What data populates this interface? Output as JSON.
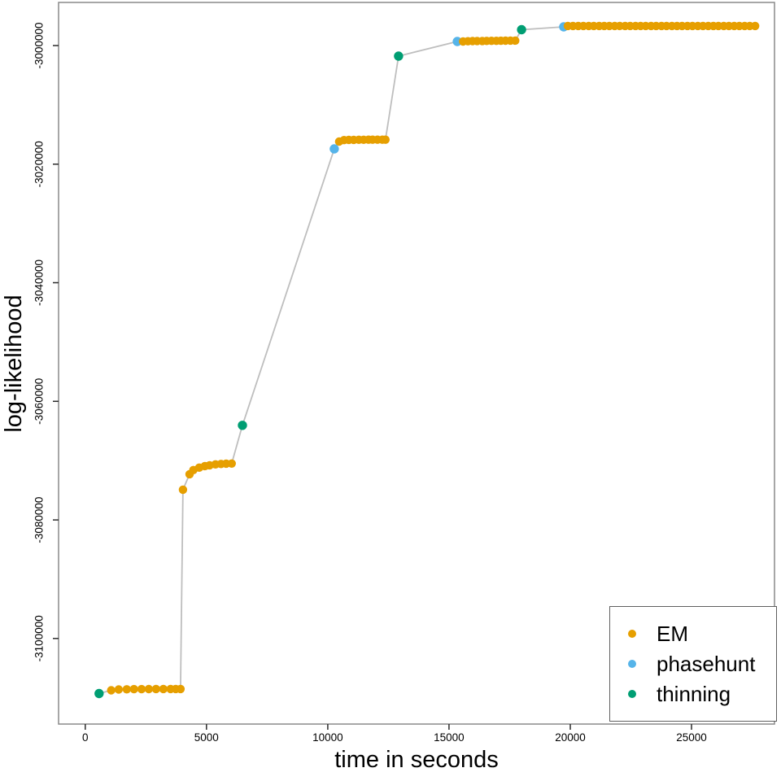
{
  "figure": {
    "background": "#ffffff",
    "box_color": "#8a8a8a",
    "tick_color": "#2b2b2b",
    "text_color": "#000000",
    "trajectory_line_color": "#bebebe"
  },
  "chart_data": {
    "type": "scatter",
    "title": "",
    "xlabel": "time in seconds",
    "ylabel": "log-likelihood",
    "xlim": [
      -1100,
      28420
    ],
    "ylim": [
      -3114430,
      -2992730
    ],
    "x_ticks": [
      0,
      5000,
      10000,
      15000,
      20000,
      25000
    ],
    "y_ticks": [
      -3000000,
      -3020000,
      -3040000,
      -3060000,
      -3080000,
      -3100000
    ],
    "grid": false,
    "legend_position": "bottom-right",
    "connecting_line": "all points joined in time order by a light gray line",
    "series": [
      {
        "name": "EM",
        "color": "#E69F00",
        "points": [
          [
            1070,
            -3108730
          ],
          [
            1380,
            -3108600
          ],
          [
            1710,
            -3108570
          ],
          [
            2010,
            -3108550
          ],
          [
            2320,
            -3108540
          ],
          [
            2620,
            -3108530
          ],
          [
            2920,
            -3108520
          ],
          [
            3220,
            -3108510
          ],
          [
            3520,
            -3108510
          ],
          [
            3730,
            -3108510
          ],
          [
            3930,
            -3108510
          ],
          [
            4030,
            -3074900
          ],
          [
            4300,
            -3072290
          ],
          [
            4460,
            -3071600
          ],
          [
            4700,
            -3071190
          ],
          [
            4930,
            -3070920
          ],
          [
            5130,
            -3070780
          ],
          [
            5370,
            -3070640
          ],
          [
            5600,
            -3070570
          ],
          [
            5810,
            -3070510
          ],
          [
            6040,
            -3070500
          ],
          [
            10470,
            -3016190
          ],
          [
            10670,
            -3015950
          ],
          [
            10870,
            -3015910
          ],
          [
            11070,
            -3015900
          ],
          [
            11280,
            -3015890
          ],
          [
            11480,
            -3015890
          ],
          [
            11680,
            -3015880
          ],
          [
            11850,
            -3015880
          ],
          [
            12050,
            -3015880
          ],
          [
            12250,
            -3015880
          ],
          [
            12380,
            -3015880
          ],
          [
            15580,
            -2999320
          ],
          [
            15780,
            -2999270
          ],
          [
            15970,
            -2999250
          ],
          [
            16160,
            -2999240
          ],
          [
            16370,
            -2999230
          ],
          [
            16550,
            -2999220
          ],
          [
            16750,
            -2999210
          ],
          [
            16950,
            -2999200
          ],
          [
            17140,
            -2999190
          ],
          [
            17330,
            -2999180
          ],
          [
            17530,
            -2999170
          ],
          [
            17730,
            -2999160
          ],
          [
            19900,
            -2996700
          ],
          [
            20110,
            -2996700
          ],
          [
            20330,
            -2996700
          ],
          [
            20540,
            -2996700
          ],
          [
            20760,
            -2996700
          ],
          [
            20970,
            -2996700
          ],
          [
            21190,
            -2996700
          ],
          [
            21400,
            -2996700
          ],
          [
            21610,
            -2996700
          ],
          [
            21830,
            -2996700
          ],
          [
            22040,
            -2996700
          ],
          [
            22260,
            -2996700
          ],
          [
            22470,
            -2996700
          ],
          [
            22690,
            -2996700
          ],
          [
            22900,
            -2996700
          ],
          [
            23110,
            -2996700
          ],
          [
            23330,
            -2996700
          ],
          [
            23540,
            -2996700
          ],
          [
            23760,
            -2996700
          ],
          [
            23970,
            -2996700
          ],
          [
            24190,
            -2996700
          ],
          [
            24400,
            -2996700
          ],
          [
            24610,
            -2996700
          ],
          [
            24830,
            -2996700
          ],
          [
            25040,
            -2996700
          ],
          [
            25260,
            -2996700
          ],
          [
            25470,
            -2996700
          ],
          [
            25690,
            -2996700
          ],
          [
            25900,
            -2996700
          ],
          [
            26110,
            -2996700
          ],
          [
            26330,
            -2996700
          ],
          [
            26540,
            -2996700
          ],
          [
            26760,
            -2996700
          ],
          [
            26970,
            -2996700
          ],
          [
            27190,
            -2996700
          ],
          [
            27400,
            -2996700
          ],
          [
            27620,
            -2996700
          ]
        ]
      },
      {
        "name": "phasehunt",
        "color": "#56B4E9",
        "points": [
          [
            10270,
            -3017420
          ],
          [
            15340,
            -2999310
          ],
          [
            19730,
            -2996850
          ]
        ]
      },
      {
        "name": "thinning",
        "color": "#009E73",
        "points": [
          [
            570,
            -3109280
          ],
          [
            6480,
            -3064050
          ],
          [
            12920,
            -3001780
          ],
          [
            17990,
            -2997330
          ]
        ]
      }
    ]
  },
  "legend": {
    "items": [
      {
        "label": "EM",
        "color": "#E69F00"
      },
      {
        "label": "phasehunt",
        "color": "#56B4E9"
      },
      {
        "label": "thinning",
        "color": "#009E73"
      }
    ]
  }
}
